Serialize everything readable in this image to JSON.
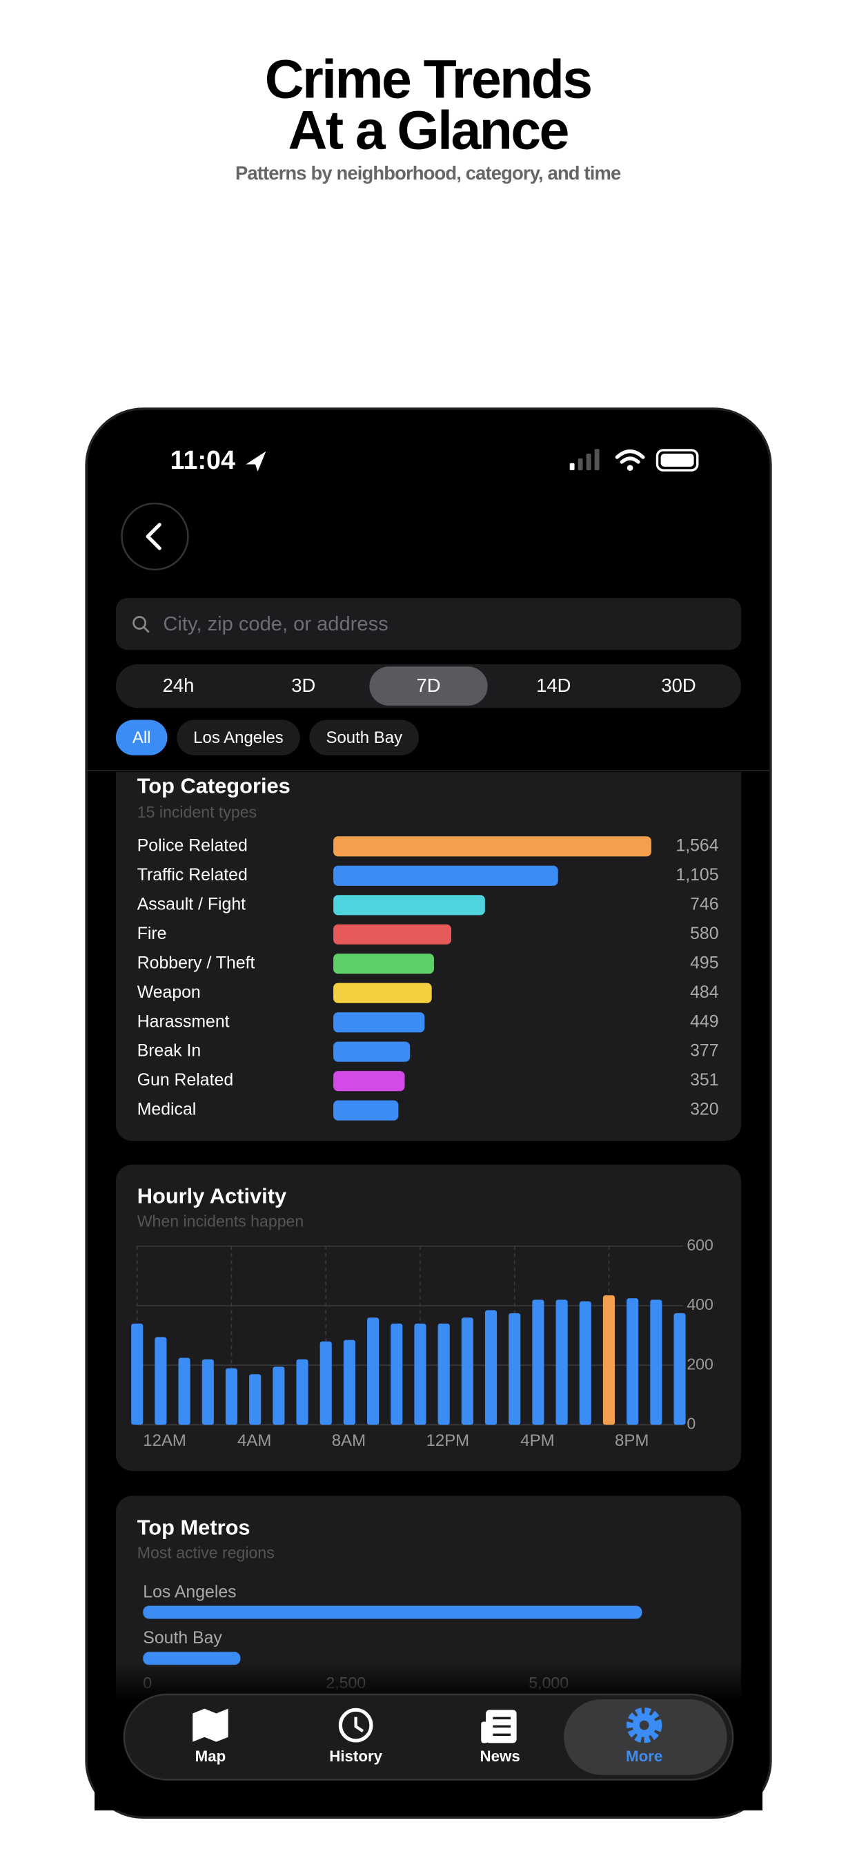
{
  "header": {
    "title_lines": [
      "Crime Trends",
      "At a Glance"
    ],
    "subtitle": "Patterns by neighborhood, category, and time"
  },
  "status_bar": {
    "time": "11:04"
  },
  "search": {
    "placeholder": "City, zip code, or address"
  },
  "time_filters": {
    "options": [
      "24h",
      "3D",
      "7D",
      "14D",
      "30D"
    ],
    "selected": 2
  },
  "region_chips": {
    "options": [
      "All",
      "Los Angeles",
      "South Bay"
    ],
    "selected": 0
  },
  "chart_data": [
    {
      "type": "hbar",
      "title": "Top Categories",
      "subtitle": "15 incident types",
      "categories": [
        "Police Related",
        "Traffic Related",
        "Assault / Fight",
        "Fire",
        "Robbery / Theft",
        "Weapon",
        "Harassment",
        "Break In",
        "Gun Related",
        "Medical"
      ],
      "values": [
        1564,
        1105,
        746,
        580,
        495,
        484,
        449,
        377,
        351,
        320
      ],
      "value_labels": [
        "1,564",
        "1,105",
        "746",
        "580",
        "495",
        "484",
        "449",
        "377",
        "351",
        "320"
      ],
      "colors": [
        "#f2a04e",
        "#3b8cf5",
        "#4fd3dc",
        "#e85a5a",
        "#5fcf6a",
        "#f2d040",
        "#3b8cf5",
        "#3b8cf5",
        "#d34ae8",
        "#3b8cf5"
      ],
      "xlim": [
        0,
        1564
      ]
    },
    {
      "type": "bar",
      "title": "Hourly Activity",
      "subtitle": "When incidents happen",
      "categories": [
        "12AM",
        null,
        null,
        null,
        "4AM",
        null,
        null,
        null,
        "8AM",
        null,
        null,
        null,
        "12PM",
        null,
        null,
        null,
        "4PM",
        null,
        null,
        null,
        "8PM",
        null,
        null,
        null
      ],
      "values": [
        340,
        295,
        225,
        220,
        190,
        170,
        195,
        220,
        280,
        285,
        360,
        340,
        340,
        340,
        360,
        385,
        375,
        420,
        420,
        415,
        435,
        425,
        420,
        375
      ],
      "colors": [
        "#3b8cf5",
        "#3b8cf5",
        "#3b8cf5",
        "#3b8cf5",
        "#3b8cf5",
        "#3b8cf5",
        "#3b8cf5",
        "#3b8cf5",
        "#3b8cf5",
        "#3b8cf5",
        "#3b8cf5",
        "#3b8cf5",
        "#3b8cf5",
        "#3b8cf5",
        "#3b8cf5",
        "#3b8cf5",
        "#3b8cf5",
        "#3b8cf5",
        "#3b8cf5",
        "#3b8cf5",
        "#f2a04e",
        "#3b8cf5",
        "#3b8cf5",
        "#3b8cf5"
      ],
      "ylim": [
        0,
        600
      ],
      "yticks": [
        0,
        200,
        400,
        600
      ],
      "grid": true
    },
    {
      "type": "hbar",
      "title": "Top Metros",
      "subtitle": "Most active regions",
      "categories": [
        "Los Angeles",
        "South Bay"
      ],
      "values": [
        6150,
        1200
      ],
      "color": "#3b8cf5",
      "xlim": [
        0,
        6250
      ],
      "xticks": [
        0,
        {
          "value": 2500,
          "label": "2,500"
        },
        {
          "value": 5000,
          "label": "5,000"
        }
      ]
    }
  ],
  "tab_bar": {
    "items": [
      "Map",
      "History",
      "News",
      "More"
    ],
    "selected": 3
  }
}
